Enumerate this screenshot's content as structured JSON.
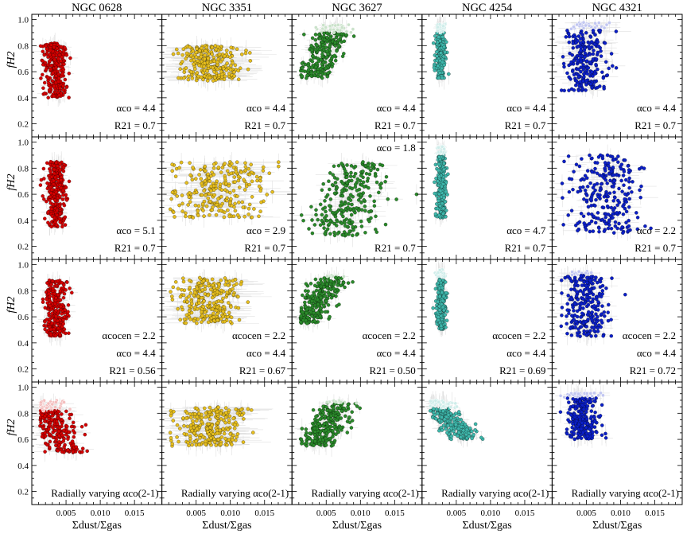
{
  "chart_data": {
    "type": "scatter",
    "layout": {
      "rows": 4,
      "cols": 5,
      "sharex": true,
      "sharey": true
    },
    "galaxies": [
      "NGC 0628",
      "NGC 3351",
      "NGC 3627",
      "NGC 4254",
      "NGC 4321"
    ],
    "colors": {
      "NGC 0628": "#d40000",
      "NGC 3351": "#e6be1e",
      "NGC 3627": "#2a8a2a",
      "NGC 4254": "#3fb8ac",
      "NGC 4321": "#0b1fc8",
      "errorbar": "#c8c8c8"
    },
    "xlabel": "Σdust/Σgas",
    "ylabel": "fH2",
    "xlim": [
      0,
      0.019
    ],
    "ylim": [
      0.1,
      1.04
    ],
    "xticks": [
      0.005,
      0.01,
      0.015
    ],
    "xticklabels": [
      "0.005",
      "0.010",
      "0.015"
    ],
    "yticks": [
      0.2,
      0.4,
      0.6,
      0.8,
      1.0
    ],
    "yticklabels": [
      "0.2",
      "0.4",
      "0.6",
      "0.8",
      "1.0"
    ],
    "grid": false,
    "rows": [
      {
        "annotations": [
          [
            "αco = 4.4",
            "R21 = 0.7"
          ],
          [
            "αco = 4.4",
            "R21 = 0.7"
          ],
          [
            "αco = 4.4",
            "R21 = 0.7"
          ],
          [
            "αco = 4.4",
            "R21 = 0.7"
          ],
          [
            "αco = 4.4",
            "R21 = 0.7"
          ]
        ],
        "clouds": [
          {
            "xc": 0.0035,
            "xs": 0.0009,
            "y0": 0.4,
            "y1": 0.82,
            "slope": 0,
            "xspread": 0.001,
            "hl": 0.93
          },
          {
            "xc": 0.007,
            "xs": 0.0022,
            "y0": 0.53,
            "y1": 0.8,
            "slope": 0,
            "xspread": 0.0045,
            "hl": 0.95
          },
          {
            "xc": 0.0048,
            "xs": 0.0013,
            "y0": 0.55,
            "y1": 0.96,
            "slope": -28,
            "xspread": 0.001,
            "hl": 0.9
          },
          {
            "xc": 0.0027,
            "xs": 0.00035,
            "y0": 0.55,
            "y1": 0.97,
            "slope": 0,
            "xspread": 0.0004,
            "hl": 0.9
          },
          {
            "xc": 0.0048,
            "xs": 0.0016,
            "y0": 0.45,
            "y1": 0.98,
            "slope": 0,
            "xspread": 0.002,
            "hl": 0.92
          }
        ]
      },
      {
        "annotations": [
          [
            "αco = 5.1",
            "R21 = 0.7"
          ],
          [
            "αco = 2.9",
            "R21 = 0.7"
          ],
          [
            "αco = 1.8",
            "R21 = 0.7"
          ],
          [
            "αco = 4.7",
            "R21 = 0.7"
          ],
          [
            "αco = 2.2",
            "R21 = 0.7"
          ]
        ],
        "clouds": [
          {
            "xc": 0.0035,
            "xs": 0.0008,
            "y0": 0.35,
            "y1": 0.85,
            "slope": 0,
            "xspread": 0.001,
            "hl": 0.92
          },
          {
            "xc": 0.008,
            "xs": 0.0035,
            "y0": 0.42,
            "y1": 0.85,
            "slope": -10,
            "xspread": 0.004,
            "hl": 0.96
          },
          {
            "xc": 0.0085,
            "xs": 0.0025,
            "y0": 0.28,
            "y1": 0.85,
            "slope": -20,
            "xspread": 0.002,
            "hl": 0.96
          },
          {
            "xc": 0.0028,
            "xs": 0.00035,
            "y0": 0.42,
            "y1": 0.97,
            "slope": 0,
            "xspread": 0.0004,
            "hl": 0.9
          },
          {
            "xc": 0.0075,
            "xs": 0.0028,
            "y0": 0.3,
            "y1": 0.9,
            "slope": 0,
            "xspread": 0.002,
            "hl": 0.96
          }
        ]
      },
      {
        "annotations": [
          [
            "αcocen = 2.2",
            "αco = 4.4",
            "R21 = 0.56"
          ],
          [
            "αcocen = 2.2",
            "αco = 4.4",
            "R21 = 0.67"
          ],
          [
            "αcocen = 2.2",
            "αco = 4.4",
            "R21 = 0.50"
          ],
          [
            "αcocen = 2.2",
            "αco = 4.4",
            "R21 = 0.69"
          ],
          [
            "αcocen = 2.2",
            "αco = 4.4",
            "R21 = 0.72"
          ]
        ],
        "clouds": [
          {
            "xc": 0.0035,
            "xs": 0.0008,
            "y0": 0.45,
            "y1": 0.88,
            "slope": 0,
            "xspread": 0.001,
            "hl": 0.92
          },
          {
            "xc": 0.0068,
            "xs": 0.0022,
            "y0": 0.55,
            "y1": 0.9,
            "slope": 0,
            "xspread": 0.004,
            "hl": 0.96
          },
          {
            "xc": 0.004,
            "xs": 0.0012,
            "y0": 0.55,
            "y1": 0.92,
            "slope": -30,
            "xspread": 0.0009,
            "hl": 0.9
          },
          {
            "xc": 0.0028,
            "xs": 0.00035,
            "y0": 0.5,
            "y1": 0.97,
            "slope": 0,
            "xspread": 0.0004,
            "hl": 0.9
          },
          {
            "xc": 0.005,
            "xs": 0.0015,
            "y0": 0.45,
            "y1": 0.95,
            "slope": 0,
            "xspread": 0.002,
            "hl": 0.92
          }
        ]
      },
      {
        "annotations": [
          [
            "Radially varying αco(2-1)"
          ],
          [
            "Radially varying αco(2-1)"
          ],
          [
            "Radially varying αco(2-1)"
          ],
          [
            "Radially varying αco(2-1)"
          ],
          [
            "Radially varying αco(2-1)"
          ]
        ],
        "clouds": [
          {
            "xc": 0.0035,
            "xs": 0.0014,
            "y0": 0.5,
            "y1": 0.9,
            "slope": 20,
            "xspread": 0.002,
            "hl": 0.82
          },
          {
            "xc": 0.007,
            "xs": 0.0025,
            "y0": 0.55,
            "y1": 0.85,
            "slope": 0,
            "xspread": 0.004,
            "hl": 0.96
          },
          {
            "xc": 0.0053,
            "xs": 0.0014,
            "y0": 0.55,
            "y1": 0.9,
            "slope": -30,
            "xspread": 0.001,
            "hl": 0.88
          },
          {
            "xc": 0.004,
            "xs": 0.0012,
            "y0": 0.6,
            "y1": 0.9,
            "slope": 45,
            "xspread": 0.001,
            "hl": 0.84
          },
          {
            "xc": 0.0043,
            "xs": 0.0012,
            "y0": 0.6,
            "y1": 0.96,
            "slope": 0,
            "xspread": 0.001,
            "hl": 0.92
          }
        ]
      }
    ]
  }
}
